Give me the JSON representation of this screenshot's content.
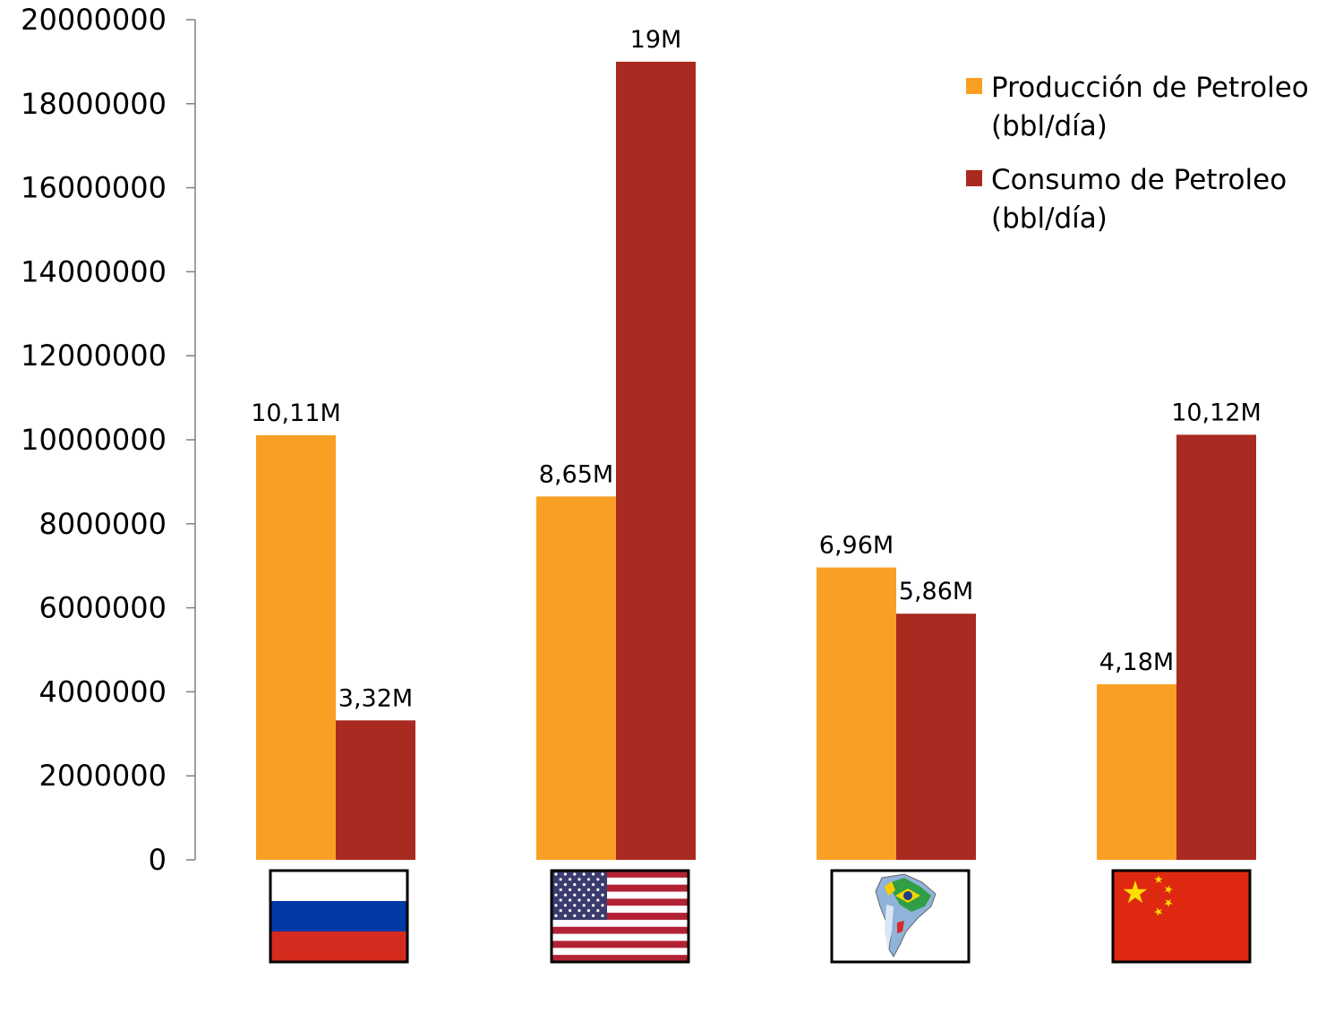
{
  "chart_data": {
    "type": "bar",
    "categories": [
      "Russia",
      "United States",
      "South America",
      "China"
    ],
    "category_icons": [
      "russia-flag-icon",
      "usa-flag-icon",
      "south-america-map-icon",
      "china-flag-icon"
    ],
    "series": [
      {
        "name": "Producción de Petroleo (bbl/día)",
        "legend_lines": [
          "Producción de Petroleo",
          "(bbl/día)"
        ],
        "color": "#F9A024",
        "values": [
          10110000,
          8650000,
          6960000,
          4180000
        ],
        "labels": [
          "10,11M",
          "8,65M",
          "6,96M",
          "4,18M"
        ]
      },
      {
        "name": "Consumo de Petroleo (bbl/día)",
        "legend_lines": [
          "Consumo de Petroleo",
          "(bbl/día)"
        ],
        "color": "#A92A20",
        "values": [
          3320000,
          19000000,
          5860000,
          10120000
        ],
        "labels": [
          "3,32M",
          "19M",
          "5,86M",
          "10,12M"
        ]
      }
    ],
    "ylim": [
      0,
      20000000
    ],
    "yticks": [
      0,
      2000000,
      4000000,
      6000000,
      8000000,
      10000000,
      12000000,
      14000000,
      16000000,
      18000000,
      20000000
    ],
    "ytick_labels": [
      "0",
      "2000000",
      "4000000",
      "6000000",
      "8000000",
      "10000000",
      "12000000",
      "14000000",
      "16000000",
      "18000000",
      "20000000"
    ],
    "grid": false,
    "legend_position": "top-right",
    "title": "",
    "xlabel": "",
    "ylabel": ""
  }
}
